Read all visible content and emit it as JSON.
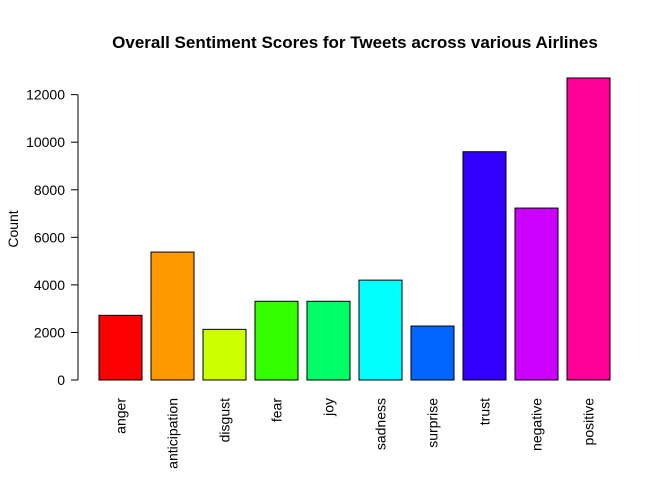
{
  "chart_data": {
    "type": "bar",
    "title": "Overall Sentiment Scores for Tweets across various Airlines",
    "xlabel": "",
    "ylabel": "Count",
    "categories": [
      "anger",
      "anticipation",
      "disgust",
      "fear",
      "joy",
      "sadness",
      "surprise",
      "trust",
      "negative",
      "positive"
    ],
    "values": [
      2720,
      5380,
      2130,
      3310,
      3310,
      4200,
      2270,
      9600,
      7230,
      12700
    ],
    "colors": [
      "#FF0000",
      "#FF9900",
      "#CCFF00",
      "#33FF00",
      "#00FF66",
      "#00FFFF",
      "#0066FF",
      "#3300FF",
      "#CC00FF",
      "#FF0099"
    ],
    "yticks": [
      0,
      2000,
      4000,
      6000,
      8000,
      10000,
      12000
    ],
    "ylim": [
      0,
      12700
    ],
    "grid": false,
    "legend": "none"
  }
}
